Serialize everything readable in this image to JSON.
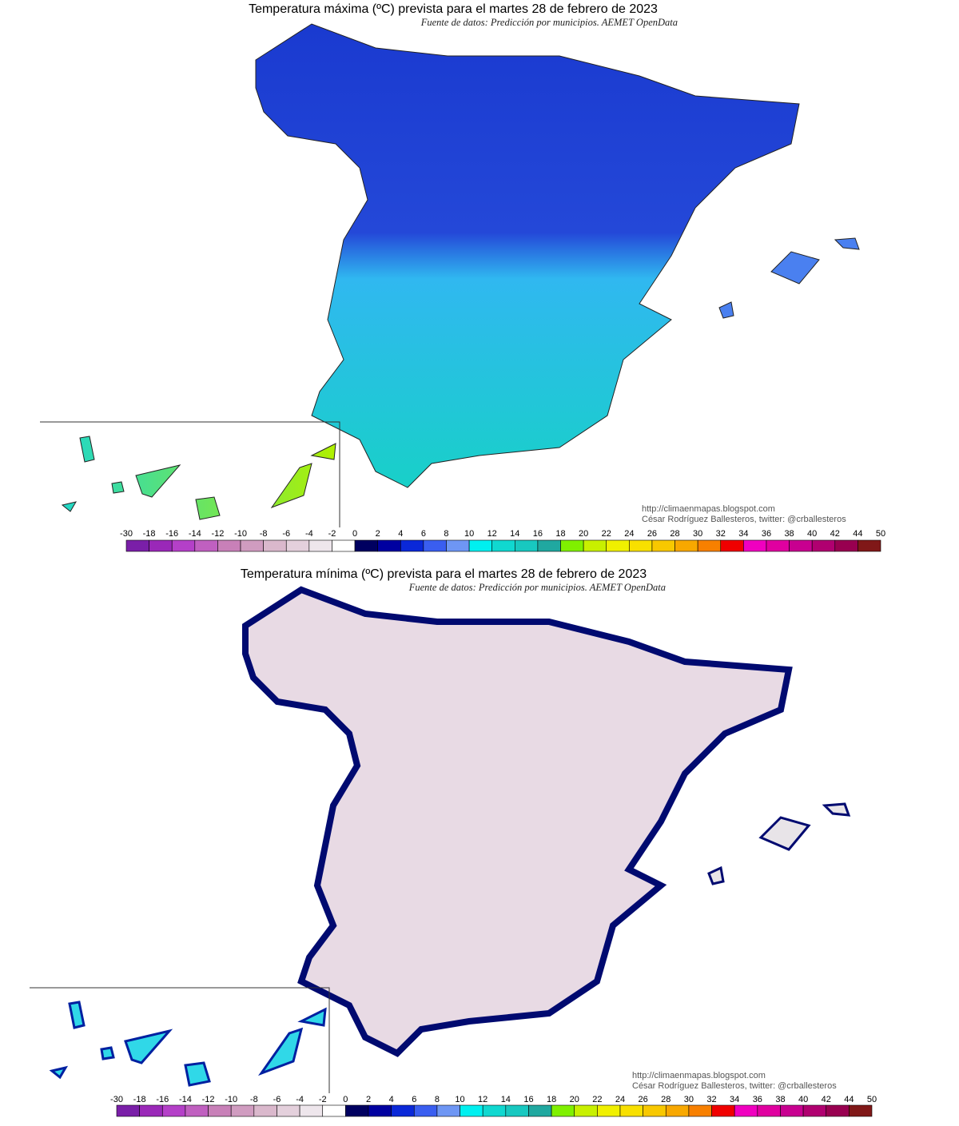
{
  "maps": [
    {
      "title": "Temperatura máxima (ºC) prevista para el martes 28 de febrero de 2023",
      "source": "Fuente de datos: Predicción por municipios. AEMET OpenData",
      "credits": [
        "http://climaenmapas.blogspot.com",
        "César Rodríguez Ballesteros, twitter: @crballesteros"
      ]
    },
    {
      "title": "Temperatura mínima (ºC) prevista para el martes 28 de febrero de 2023",
      "source": "Fuente de datos: Predicción por municipios. AEMET OpenData",
      "credits": [
        "http://climaenmapas.blogspot.com",
        "César Rodríguez Ballesteros, twitter: @crballesteros"
      ]
    }
  ],
  "scale": {
    "ticks": [
      -30,
      -18,
      -16,
      -14,
      -12,
      -10,
      -8,
      -6,
      -4,
      -2,
      0,
      2,
      4,
      6,
      8,
      10,
      12,
      14,
      16,
      18,
      20,
      22,
      24,
      26,
      28,
      30,
      32,
      34,
      36,
      38,
      40,
      42,
      44,
      50
    ],
    "colors": [
      "#7a1fa8",
      "#9a28b8",
      "#b440c8",
      "#c060c0",
      "#c880b8",
      "#d09cc0",
      "#dab8cc",
      "#e4d0dc",
      "#eee6ec",
      "#ffffff",
      "#000060",
      "#0000a0",
      "#0a28d8",
      "#3a5ef0",
      "#6e96f4",
      "#00f0f0",
      "#10d8d0",
      "#18c8c0",
      "#20a8a0",
      "#80f000",
      "#c8f000",
      "#f0f000",
      "#f8e000",
      "#f8c800",
      "#f8a800",
      "#f88000",
      "#f00000",
      "#f000c0",
      "#e000a0",
      "#c80090",
      "#b00070",
      "#980050",
      "#801818"
    ]
  }
}
